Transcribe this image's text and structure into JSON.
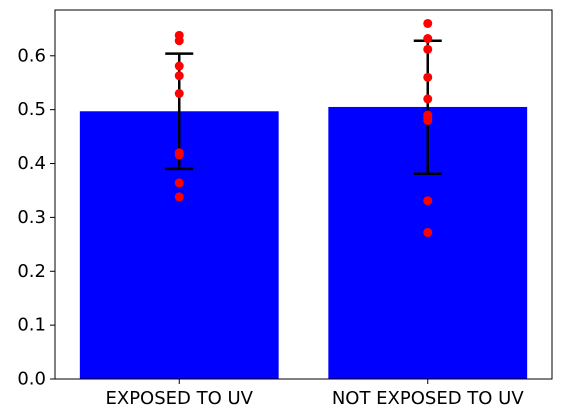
{
  "chart_data": {
    "type": "bar",
    "title": "",
    "xlabel": "",
    "ylabel": "",
    "ylim": [
      0,
      0.685
    ],
    "yticks": [
      "0.0",
      "0.1",
      "0.2",
      "0.3",
      "0.4",
      "0.5",
      "0.6"
    ],
    "grid": false,
    "categories": [
      "EXPOSED TO UV",
      "NOT EXPOSED TO UV"
    ],
    "values": [
      0.497,
      0.505
    ],
    "error_low": [
      0.39,
      0.381
    ],
    "error_high": [
      0.604,
      0.628
    ],
    "points": [
      [
        0.638,
        0.628,
        0.581,
        0.563,
        0.53,
        0.42,
        0.416,
        0.364,
        0.338
      ],
      [
        0.66,
        0.632,
        0.612,
        0.56,
        0.52,
        0.49,
        0.485,
        0.48,
        0.331,
        0.272
      ]
    ],
    "colors": {
      "bar": "#0000ff",
      "points": "#ff0000",
      "errorbar": "#000000"
    }
  }
}
